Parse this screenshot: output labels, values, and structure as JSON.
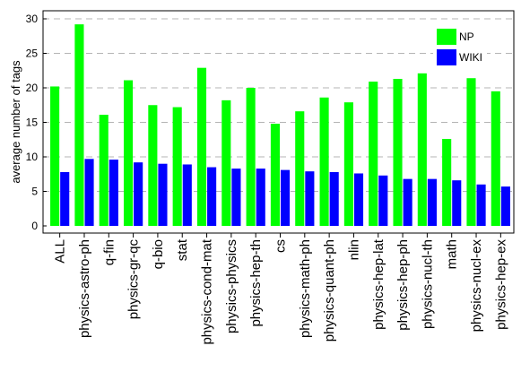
{
  "chart_data": {
    "type": "bar",
    "title": "",
    "xlabel": "",
    "ylabel": "average number of tags",
    "ylim": [
      0,
      30
    ],
    "yticks": [
      0,
      5,
      10,
      15,
      20,
      25,
      30
    ],
    "grid": "horizontal-dashed",
    "legend_position": "top-right",
    "categories": [
      "ALL",
      "physics-astro-ph",
      "q-fin",
      "physics-gr-qc",
      "q-bio",
      "stat",
      "physics-cond-mat",
      "physics-physics",
      "physics-hep-th",
      "cs",
      "physics-math-ph",
      "physics-quant-ph",
      "nlin",
      "physics-hep-lat",
      "physics-hep-ph",
      "physics-nucl-th",
      "math",
      "physics-nucl-ex",
      "physics-hep-ex"
    ],
    "series": [
      {
        "name": "NP",
        "color": "#00ff00",
        "values": [
          20.2,
          29.2,
          16.1,
          21.1,
          17.5,
          17.2,
          22.9,
          18.2,
          20.0,
          14.8,
          16.6,
          18.6,
          17.9,
          20.9,
          21.3,
          22.1,
          12.6,
          21.4,
          19.5
        ]
      },
      {
        "name": "WIKI",
        "color": "#0000ff",
        "values": [
          7.8,
          9.7,
          9.6,
          9.2,
          9.0,
          8.9,
          8.5,
          8.3,
          8.3,
          8.1,
          7.9,
          7.8,
          7.6,
          7.3,
          6.8,
          6.8,
          6.6,
          6.0,
          5.7
        ]
      }
    ]
  }
}
